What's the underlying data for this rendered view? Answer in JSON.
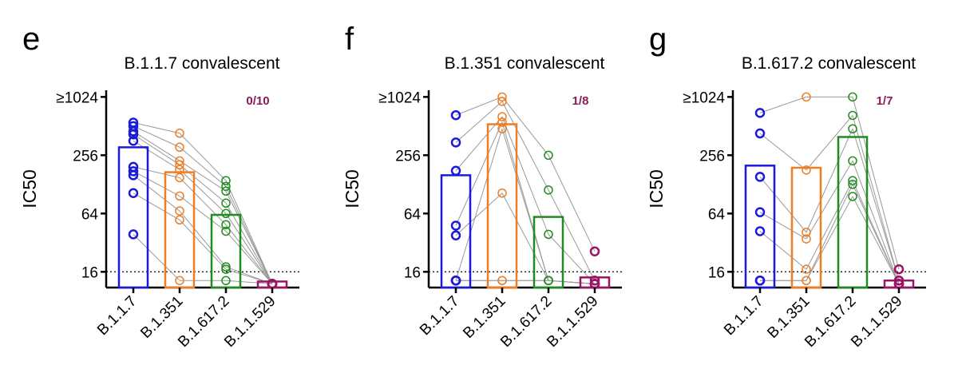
{
  "chart_data": [
    {
      "type": "bar",
      "panel": "e",
      "title": "B.1.1.7 convalescent",
      "ylabel": "IC50",
      "annotation": "0/10",
      "categories": [
        "B.1.1.7",
        "B.1.351",
        "B.1.617.2",
        "B.1.1.529"
      ],
      "colors": [
        "#1a1adb",
        "#f07d22",
        "#1e8c1e",
        "#9c1466"
      ],
      "values": [
        309,
        171,
        62,
        12.7
      ],
      "points": [
        [
          556,
          512,
          452,
          420,
          360,
          194,
          175,
          159,
          104,
          39
        ],
        [
          432,
          310,
          224,
          204,
          182,
          150,
          97,
          68,
          55,
          13
        ],
        [
          140,
          122,
          109,
          82,
          64,
          49,
          42,
          18,
          17,
          13
        ],
        [
          12,
          12,
          12,
          12,
          12,
          12,
          12,
          12,
          12,
          12
        ]
      ],
      "threshold": 16,
      "ylog": true,
      "ylim": [
        11,
        1200
      ],
      "yticks": [
        16,
        64,
        256,
        {
          "value": 1024,
          "label": "≥1024"
        }
      ]
    },
    {
      "type": "bar",
      "panel": "f",
      "title": "B.1.351 convalescent",
      "ylabel": "IC50",
      "annotation": "1/8",
      "categories": [
        "B.1.1.7",
        "B.1.351",
        "B.1.617.2",
        "B.1.1.529"
      ],
      "colors": [
        "#1a1adb",
        "#f07d22",
        "#1e8c1e",
        "#9c1466"
      ],
      "values": [
        159,
        535,
        59,
        14
      ],
      "points": [
        [
          663,
          347,
          177,
          48,
          38,
          13,
          13,
          13
        ],
        [
          1024,
          920,
          640,
          560,
          104,
          480,
          13,
          13
        ],
        [
          256,
          112,
          39,
          13,
          13,
          13,
          13,
          13
        ],
        [
          26,
          13,
          12,
          12,
          12,
          12,
          12,
          12
        ]
      ],
      "threshold": 16,
      "ylog": true,
      "ylim": [
        11,
        1200
      ],
      "yticks": [
        16,
        64,
        256,
        {
          "value": 1024,
          "label": "≥1024"
        }
      ]
    },
    {
      "type": "bar",
      "panel": "g",
      "title": "B.1.617.2 convalescent",
      "ylabel": "IC50",
      "annotation": "1/7",
      "categories": [
        "B.1.1.7",
        "B.1.351",
        "B.1.617.2",
        "B.1.1.529"
      ],
      "colors": [
        "#1a1adb",
        "#f07d22",
        "#1e8c1e",
        "#9c1466"
      ],
      "values": [
        200,
        190,
        395,
        13
      ],
      "points": [
        [
          700,
          430,
          153,
          66,
          42,
          13,
          13
        ],
        [
          1024,
          180,
          41,
          35,
          17,
          13,
          13
        ],
        [
          1024,
          660,
          480,
          224,
          140,
          128,
          96
        ],
        [
          17,
          13,
          13,
          12,
          12,
          12,
          12
        ]
      ],
      "threshold": 16,
      "ylog": true,
      "ylim": [
        11,
        1200
      ],
      "yticks": [
        16,
        64,
        256,
        {
          "value": 1024,
          "label": "≥1024"
        }
      ]
    }
  ]
}
